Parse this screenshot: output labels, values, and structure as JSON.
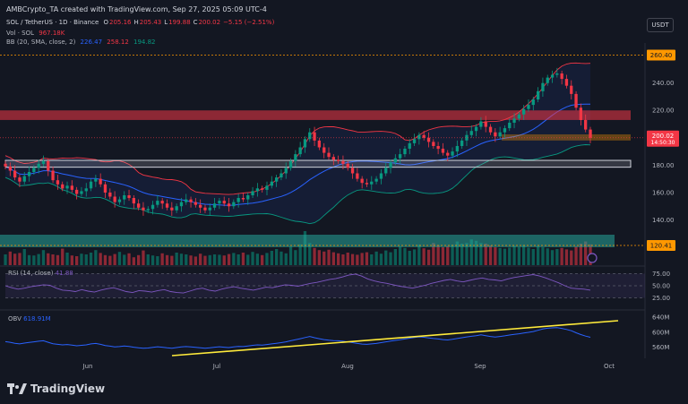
{
  "header": {
    "text": "AMBCrypto_TA created with TradingView.com, Sep 27, 2025 05:09 UTC-4"
  },
  "legend": {
    "title": "SOL / TetherUS · 1D · Binance",
    "ohlc": [
      {
        "k": "O",
        "v": "205.16"
      },
      {
        "k": "H",
        "v": "205.43"
      },
      {
        "k": "L",
        "v": "199.88"
      },
      {
        "k": "C",
        "v": "200.02"
      },
      {
        "k": "",
        "v": "−5.15 (−2.51%)"
      }
    ],
    "vol_label": "Vol · SOL",
    "vol_value": "967.18K",
    "bb_label": "BB (20, SMA, close, 2)",
    "bb_values": [
      "226.47",
      "258.12",
      "194.82"
    ]
  },
  "currency": "USDT",
  "price_tags": {
    "top": "260.40",
    "current": "200.02",
    "countdown": "14:50:30",
    "volume_tag": "120.41"
  },
  "rsi": {
    "label": "RSI (14, close)",
    "value": "41.88",
    "ticks": [
      "75.00",
      "50.00",
      "25.00"
    ]
  },
  "obv": {
    "label": "OBV",
    "value": "618.91M",
    "ticks": [
      "640M",
      "600M",
      "560M"
    ]
  },
  "brand": "TradingView",
  "chart_data": {
    "type": "candlestick",
    "symbol": "SOL / TetherUS",
    "timeframe": "1D",
    "x_ticks": [
      "Jun",
      "Jul",
      "Aug",
      "Sep",
      "Oct"
    ],
    "y_ticks": [
      140,
      160,
      180,
      200,
      220,
      240
    ],
    "ylim": [
      122,
      264
    ],
    "close_series": [
      179,
      176,
      171,
      168,
      172,
      175,
      178,
      181,
      183,
      176,
      169,
      166,
      163,
      165,
      162,
      159,
      161,
      163,
      168,
      170,
      166,
      160,
      157,
      153,
      155,
      158,
      156,
      152,
      149,
      147,
      148,
      151,
      154,
      152,
      149,
      147,
      150,
      153,
      155,
      153,
      151,
      149,
      147,
      149,
      152,
      154,
      152,
      150,
      153,
      156,
      155,
      158,
      161,
      163,
      162,
      165,
      168,
      171,
      174,
      178,
      183,
      188,
      193,
      199,
      204,
      198,
      193,
      189,
      186,
      184,
      183,
      181,
      178,
      174,
      170,
      167,
      166,
      168,
      170,
      174,
      178,
      182,
      185,
      188,
      192,
      196,
      199,
      202,
      200,
      197,
      194,
      192,
      189,
      187,
      190,
      194,
      198,
      202,
      205,
      208,
      212,
      208,
      204,
      201,
      204,
      207,
      211,
      214,
      217,
      221,
      224,
      228,
      234,
      240,
      244,
      246,
      247,
      243,
      238,
      232,
      222,
      213,
      206,
      200
    ],
    "bollinger": {
      "middle": "226.47",
      "upper": "258.12",
      "lower": "194.82"
    },
    "volume": [
      0.3,
      0.38,
      0.32,
      0.34,
      0.45,
      0.28,
      0.27,
      0.31,
      0.42,
      0.33,
      0.3,
      0.28,
      0.46,
      0.35,
      0.27,
      0.25,
      0.32,
      0.3,
      0.35,
      0.42,
      0.34,
      0.28,
      0.26,
      0.31,
      0.37,
      0.29,
      0.33,
      0.22,
      0.28,
      0.41,
      0.3,
      0.27,
      0.25,
      0.33,
      0.28,
      0.26,
      0.35,
      0.32,
      0.3,
      0.27,
      0.24,
      0.32,
      0.26,
      0.28,
      0.3,
      0.29,
      0.27,
      0.31,
      0.34,
      0.3,
      0.35,
      0.29,
      0.37,
      0.32,
      0.28,
      0.34,
      0.4,
      0.45,
      0.38,
      0.33,
      0.52,
      0.42,
      0.58,
      0.95,
      0.62,
      0.48,
      0.42,
      0.38,
      0.43,
      0.36,
      0.33,
      0.3,
      0.35,
      0.31,
      0.29,
      0.34,
      0.36,
      0.3,
      0.38,
      0.32,
      0.41,
      0.36,
      0.45,
      0.52,
      0.48,
      0.4,
      0.44,
      0.57,
      0.47,
      0.43,
      0.62,
      0.56,
      0.5,
      0.53,
      0.57,
      0.66,
      0.6,
      0.62,
      0.72,
      0.68,
      0.62,
      0.6,
      0.55,
      0.5,
      0.48,
      0.46,
      0.49,
      0.54,
      0.51,
      0.56,
      0.49,
      0.45,
      0.53,
      0.5,
      0.47,
      0.42,
      0.45,
      0.48,
      0.44,
      0.41,
      0.52,
      0.6,
      0.66,
      0.58
    ],
    "rsi_series": [
      50,
      46,
      43,
      45,
      48,
      50,
      52,
      51,
      45,
      41,
      40,
      38,
      42,
      39,
      37,
      41,
      44,
      46,
      42,
      38,
      36,
      40,
      39,
      37,
      40,
      42,
      38,
      36,
      35,
      39,
      43,
      45,
      41,
      39,
      43,
      46,
      48,
      45,
      43,
      41,
      44,
      47,
      46,
      49,
      52,
      51,
      49,
      52,
      55,
      57,
      60,
      63,
      65,
      68,
      72,
      74,
      70,
      64,
      60,
      57,
      55,
      52,
      49,
      47,
      45,
      48,
      51,
      55,
      58,
      61,
      63,
      60,
      58,
      61,
      64,
      66,
      63,
      62,
      60,
      64,
      67,
      69,
      71,
      73,
      70,
      66,
      61,
      56,
      50,
      45,
      44,
      43,
      41
    ]
  }
}
